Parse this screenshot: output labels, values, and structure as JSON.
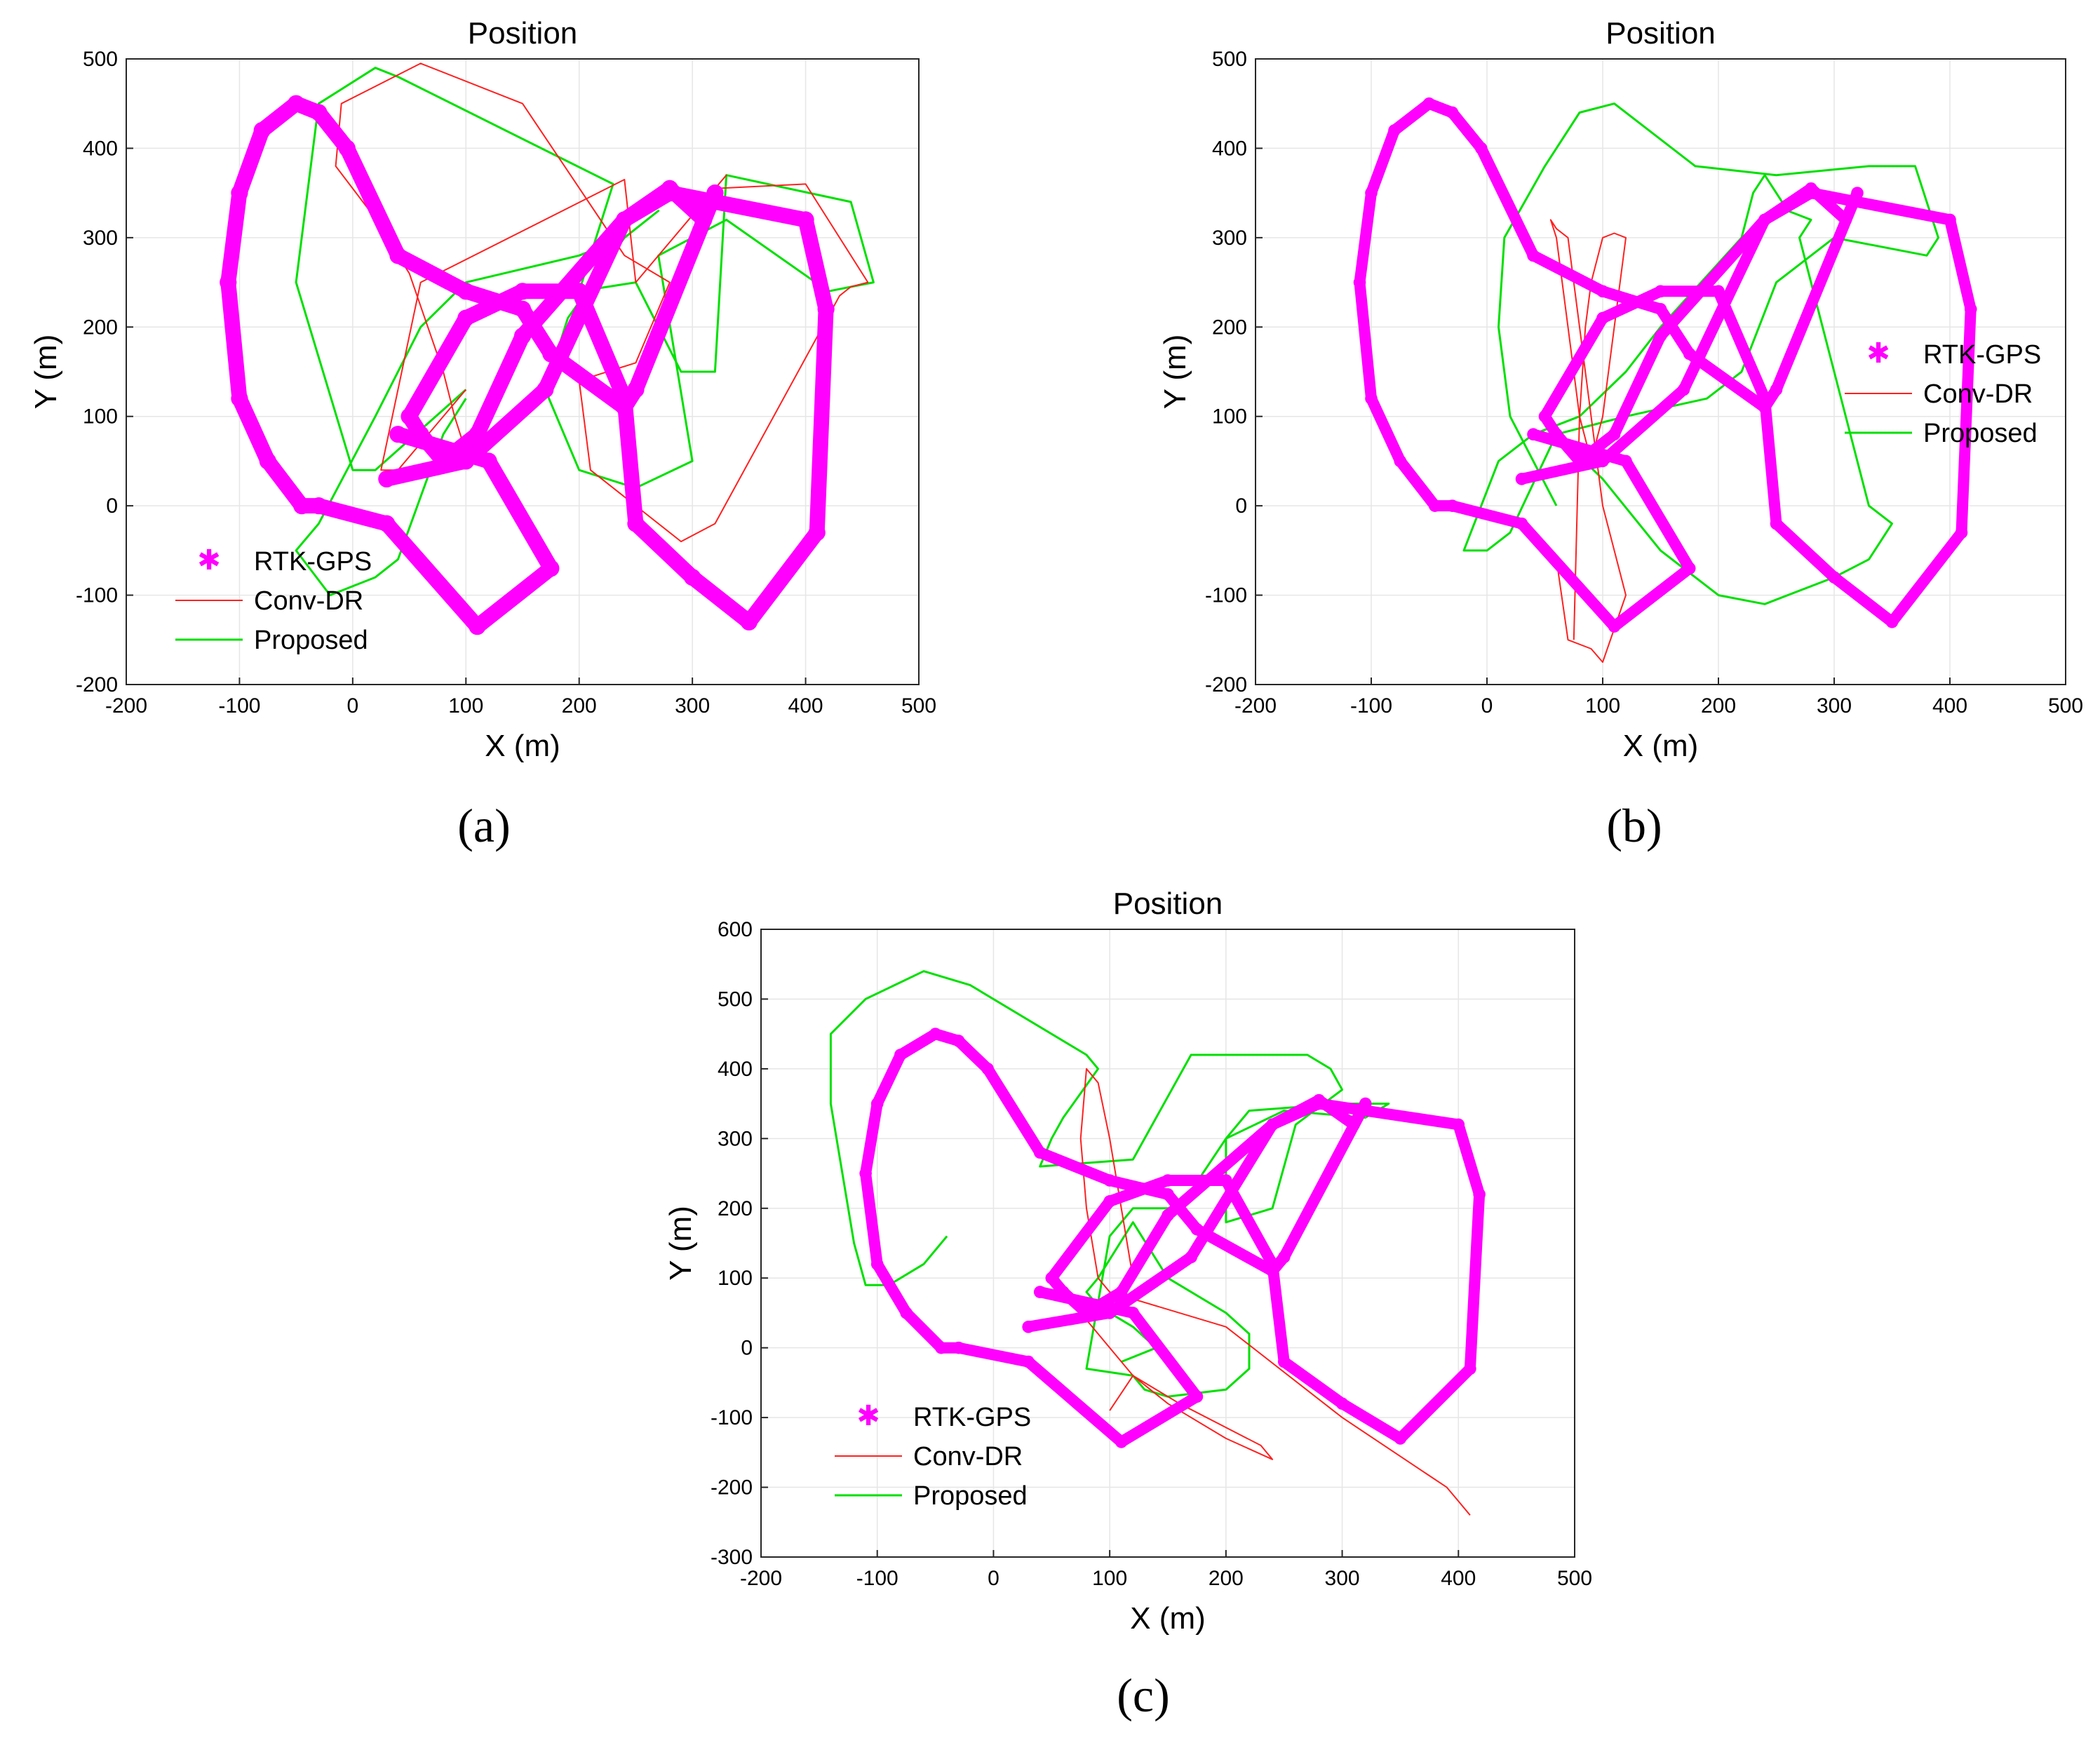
{
  "chart_data": [
    {
      "type": "line",
      "panel": "(a)",
      "title": "Position",
      "xlabel": "X (m)",
      "ylabel": "Y (m)",
      "xlim": [
        -200,
        500
      ],
      "ylim": [
        -200,
        500
      ],
      "xticks": [
        -200,
        -100,
        0,
        100,
        200,
        300,
        400,
        500
      ],
      "yticks": [
        -200,
        -100,
        0,
        100,
        200,
        300,
        400,
        500
      ],
      "grid": true,
      "legend_placement": "bottom-left",
      "legend": [
        "RTK-GPS",
        "Conv-DR",
        "Proposed"
      ],
      "series": [
        {
          "name": "RTK-GPS",
          "color": "#ff00ff",
          "style": "marker-thick",
          "x": [
            40,
            120,
            175,
            110,
            30,
            -30,
            -45,
            -75,
            -100,
            -110,
            -100,
            -80,
            -50,
            -30,
            -5,
            40,
            100,
            150,
            175,
            240,
            250,
            320,
            310,
            280,
            240,
            150,
            110,
            80,
            60,
            50,
            100,
            150,
            200,
            240,
            250,
            300,
            350,
            410,
            418,
            400,
            280,
            240,
            170,
            100,
            30
          ],
          "y": [
            80,
            50,
            -70,
            -135,
            -20,
            0,
            0,
            50,
            120,
            250,
            350,
            420,
            450,
            440,
            400,
            280,
            240,
            220,
            170,
            110,
            130,
            350,
            320,
            355,
            320,
            190,
            80,
            50,
            80,
            100,
            210,
            240,
            240,
            120,
            -20,
            -80,
            -130,
            -30,
            220,
            320,
            350,
            320,
            130,
            50,
            30
          ]
        },
        {
          "name": "Conv-DR",
          "color": "#ff2020",
          "style": "line",
          "x": [
            100,
            40,
            25,
            60,
            240,
            250,
            330,
            320,
            400,
            410,
            455,
            440,
            430,
            320,
            290,
            210,
            200,
            250,
            280,
            240,
            150,
            60,
            -10,
            -15,
            15,
            50,
            80,
            90,
            100
          ],
          "y": [
            130,
            40,
            40,
            250,
            365,
            250,
            370,
            355,
            360,
            340,
            250,
            245,
            235,
            -20,
            -40,
            40,
            140,
            160,
            250,
            280,
            450,
            495,
            450,
            380,
            330,
            260,
            150,
            100,
            60
          ]
        },
        {
          "name": "Proposed",
          "color": "#00e000",
          "style": "line",
          "x": [
            100,
            20,
            0,
            -50,
            -30,
            20,
            40,
            230,
            200,
            250,
            290,
            320,
            330,
            440,
            460,
            420,
            330,
            270,
            300,
            250,
            200,
            170,
            190,
            240,
            270,
            240,
            200,
            100,
            60,
            20,
            -30,
            -50,
            -20,
            20,
            40,
            80,
            100
          ],
          "y": [
            130,
            40,
            40,
            250,
            450,
            490,
            480,
            360,
            240,
            250,
            150,
            150,
            370,
            340,
            250,
            240,
            320,
            280,
            50,
            20,
            40,
            130,
            210,
            300,
            330,
            300,
            280,
            250,
            200,
            100,
            -20,
            -50,
            -100,
            -80,
            -60,
            80,
            120
          ]
        }
      ]
    },
    {
      "type": "line",
      "panel": "(b)",
      "title": "Position",
      "xlabel": "X (m)",
      "ylabel": "Y (m)",
      "xlim": [
        -200,
        500
      ],
      "ylim": [
        -200,
        500
      ],
      "xticks": [
        -200,
        -100,
        0,
        100,
        200,
        300,
        400,
        500
      ],
      "yticks": [
        -200,
        -100,
        0,
        100,
        200,
        300,
        400,
        500
      ],
      "grid": true,
      "legend_placement": "right",
      "legend": [
        "RTK-GPS",
        "Conv-DR",
        "Proposed"
      ],
      "series": [
        {
          "name": "RTK-GPS",
          "color": "#ff00ff",
          "style": "marker",
          "x": [
            40,
            120,
            175,
            110,
            30,
            -30,
            -45,
            -75,
            -100,
            -110,
            -100,
            -80,
            -50,
            -30,
            -5,
            40,
            100,
            150,
            175,
            240,
            250,
            320,
            310,
            280,
            240,
            150,
            110,
            80,
            60,
            50,
            100,
            150,
            200,
            240,
            250,
            300,
            350,
            410,
            418,
            400,
            280,
            240,
            170,
            100,
            30
          ],
          "y": [
            80,
            50,
            -70,
            -135,
            -20,
            0,
            0,
            50,
            120,
            250,
            350,
            420,
            450,
            440,
            400,
            280,
            240,
            220,
            170,
            110,
            130,
            350,
            320,
            355,
            320,
            190,
            80,
            50,
            80,
            100,
            210,
            240,
            240,
            120,
            -20,
            -80,
            -130,
            -30,
            220,
            320,
            350,
            320,
            130,
            50,
            30
          ]
        },
        {
          "name": "Conv-DR",
          "color": "#ff2020",
          "style": "line",
          "x": [
            60,
            70,
            90,
            100,
            120,
            100,
            90,
            80,
            70,
            60,
            55,
            60,
            70,
            80,
            90,
            100,
            110,
            120,
            110,
            100,
            90,
            85,
            80,
            75
          ],
          "y": [
            -60,
            -150,
            -160,
            -175,
            -100,
            0,
            100,
            200,
            300,
            310,
            320,
            300,
            200,
            100,
            50,
            100,
            200,
            300,
            305,
            300,
            250,
            200,
            100,
            -150
          ]
        },
        {
          "name": "Proposed",
          "color": "#00e000",
          "style": "line",
          "x": [
            60,
            20,
            10,
            15,
            50,
            80,
            110,
            180,
            250,
            330,
            370,
            390,
            380,
            300,
            250,
            220,
            190,
            120,
            60,
            20,
            0,
            -20,
            10,
            40,
            80,
            120,
            150,
            220,
            230,
            240,
            260,
            280,
            270,
            300,
            330,
            350,
            330,
            300,
            240,
            200,
            150,
            100,
            60
          ],
          "y": [
            0,
            100,
            200,
            300,
            380,
            440,
            450,
            380,
            370,
            380,
            380,
            300,
            280,
            300,
            250,
            150,
            120,
            100,
            80,
            -30,
            -50,
            -50,
            50,
            80,
            100,
            150,
            200,
            300,
            350,
            370,
            330,
            320,
            300,
            150,
            0,
            -20,
            -60,
            -80,
            -110,
            -100,
            -50,
            30,
            80
          ]
        }
      ]
    },
    {
      "type": "line",
      "panel": "(c)",
      "title": "Position",
      "xlabel": "X (m)",
      "ylabel": "Y (m)",
      "xlim": [
        -200,
        500
      ],
      "ylim": [
        -300,
        600
      ],
      "xticks": [
        -200,
        -100,
        0,
        100,
        200,
        300,
        400,
        500
      ],
      "yticks": [
        -300,
        -200,
        -100,
        0,
        100,
        200,
        300,
        400,
        500,
        600
      ],
      "grid": true,
      "legend_placement": "bottom-left",
      "legend": [
        "RTK-GPS",
        "Conv-DR",
        "Proposed"
      ],
      "series": [
        {
          "name": "RTK-GPS",
          "color": "#ff00ff",
          "style": "marker",
          "x": [
            40,
            120,
            175,
            110,
            30,
            -30,
            -45,
            -75,
            -100,
            -110,
            -100,
            -80,
            -50,
            -30,
            -5,
            40,
            100,
            150,
            175,
            240,
            250,
            320,
            310,
            280,
            240,
            150,
            110,
            80,
            60,
            50,
            100,
            150,
            200,
            240,
            250,
            300,
            350,
            410,
            418,
            400,
            280,
            240,
            170,
            100,
            30
          ],
          "y": [
            80,
            50,
            -70,
            -135,
            -20,
            0,
            0,
            50,
            120,
            250,
            350,
            420,
            450,
            440,
            400,
            280,
            240,
            220,
            170,
            110,
            130,
            350,
            320,
            355,
            320,
            190,
            80,
            50,
            80,
            100,
            210,
            240,
            240,
            120,
            -20,
            -80,
            -130,
            -30,
            220,
            320,
            350,
            320,
            130,
            50,
            30
          ]
        },
        {
          "name": "Conv-DR",
          "color": "#ff2020",
          "style": "line",
          "x": [
            410,
            400,
            390,
            300,
            200,
            100,
            90,
            80,
            75,
            80,
            90,
            100,
            110,
            120,
            90,
            80,
            120,
            160,
            230,
            240,
            200,
            150,
            120,
            100
          ],
          "y": [
            -240,
            -220,
            -200,
            -100,
            30,
            80,
            100,
            200,
            300,
            400,
            380,
            300,
            200,
            100,
            60,
            40,
            -40,
            -80,
            -140,
            -160,
            -130,
            -80,
            -40,
            -90
          ]
        },
        {
          "name": "Proposed",
          "color": "#00e000",
          "style": "line",
          "x": [
            -40,
            -60,
            -90,
            -110,
            -120,
            -140,
            -140,
            -110,
            -60,
            -20,
            80,
            90,
            60,
            50,
            40,
            120,
            140,
            170,
            270,
            290,
            300,
            260,
            240,
            200,
            200,
            220,
            300,
            340,
            320,
            250,
            200,
            160,
            120,
            100,
            80,
            120,
            130,
            150,
            200,
            220,
            220,
            200,
            150,
            120,
            90,
            80,
            90,
            100,
            120,
            140,
            110
          ],
          "y": [
            160,
            120,
            90,
            90,
            150,
            350,
            450,
            500,
            540,
            520,
            420,
            400,
            330,
            300,
            260,
            270,
            330,
            420,
            420,
            400,
            370,
            320,
            200,
            180,
            300,
            340,
            350,
            350,
            330,
            340,
            300,
            200,
            200,
            160,
            -30,
            -40,
            -60,
            -70,
            -60,
            -30,
            20,
            50,
            100,
            180,
            100,
            80,
            60,
            50,
            30,
            0,
            -20
          ]
        }
      ]
    }
  ],
  "captions": [
    "(a)",
    "(b)",
    "(c)"
  ]
}
